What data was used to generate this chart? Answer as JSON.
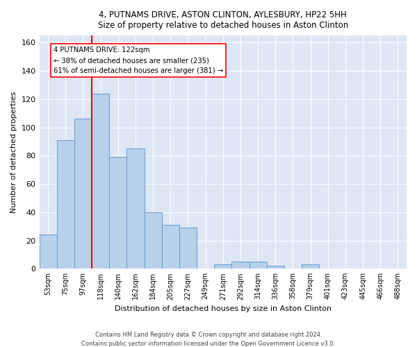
{
  "title_line1": "4, PUTNAMS DRIVE, ASTON CLINTON, AYLESBURY, HP22 5HH",
  "title_line2": "Size of property relative to detached houses in Aston Clinton",
  "xlabel": "Distribution of detached houses by size in Aston Clinton",
  "ylabel": "Number of detached properties",
  "footnote1": "Contains HM Land Registry data © Crown copyright and database right 2024.",
  "footnote2": "Contains public sector information licensed under the Open Government Licence v3.0.",
  "categories": [
    "53sqm",
    "75sqm",
    "97sqm",
    "118sqm",
    "140sqm",
    "162sqm",
    "184sqm",
    "205sqm",
    "227sqm",
    "249sqm",
    "271sqm",
    "292sqm",
    "314sqm",
    "336sqm",
    "358sqm",
    "379sqm",
    "401sqm",
    "423sqm",
    "445sqm",
    "466sqm",
    "488sqm"
  ],
  "values": [
    24,
    91,
    106,
    124,
    79,
    85,
    40,
    31,
    29,
    0,
    3,
    5,
    5,
    2,
    0,
    3,
    0,
    0,
    0,
    0,
    0
  ],
  "bar_color": "#b8d0ea",
  "bar_edge_color": "#6699cc",
  "background_color": "#dce6f5",
  "grid_color": "#ffffff",
  "vline_color": "red",
  "vline_x_index": 3,
  "annotation_text_line1": "4 PUTNAMS DRIVE: 122sqm",
  "annotation_text_line2": "← 38% of detached houses are smaller (235)",
  "annotation_text_line3": "61% of semi-detached houses are larger (381) →",
  "ylim": [
    0,
    165
  ],
  "yticks": [
    0,
    20,
    40,
    60,
    80,
    100,
    120,
    140,
    160
  ]
}
